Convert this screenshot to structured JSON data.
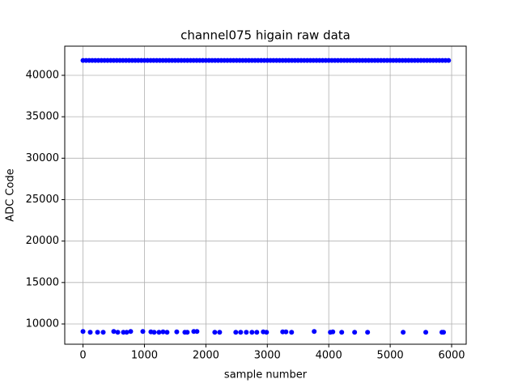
{
  "chart_data": {
    "type": "scatter",
    "title": "channel075 higain raw data",
    "x_label": "sample number",
    "y_label": "ADC Code",
    "xlim": [
      -297,
      6237
    ],
    "ylim": [
      7557,
      43517
    ],
    "xticks": [
      0,
      1000,
      2000,
      3000,
      4000,
      5000,
      6000
    ],
    "yticks": [
      10000,
      15000,
      20000,
      25000,
      30000,
      35000,
      40000
    ],
    "grid": true,
    "series": [
      {
        "color": "#0000ff",
        "x": [
          0,
          50,
          100,
          150,
          200,
          250,
          300,
          350,
          400,
          450,
          500,
          550,
          600,
          650,
          700,
          750,
          800,
          850,
          900,
          950,
          1000,
          1050,
          1100,
          1150,
          1200,
          1250,
          1300,
          1350,
          1400,
          1450,
          1500,
          1550,
          1600,
          1650,
          1700,
          1750,
          1800,
          1850,
          1900,
          1950,
          2000,
          2050,
          2100,
          2150,
          2200,
          2250,
          2300,
          2350,
          2400,
          2450,
          2500,
          2550,
          2600,
          2650,
          2700,
          2750,
          2800,
          2850,
          2900,
          2950,
          3000,
          3050,
          3100,
          3150,
          3200,
          3250,
          3300,
          3350,
          3400,
          3450,
          3500,
          3550,
          3600,
          3650,
          3700,
          3750,
          3800,
          3850,
          3900,
          3950,
          4000,
          4050,
          4100,
          4150,
          4200,
          4250,
          4300,
          4350,
          4400,
          4450,
          4500,
          4550,
          4600,
          4650,
          4700,
          4750,
          4800,
          4850,
          4900,
          4950,
          5000,
          5050,
          5100,
          5150,
          5200,
          5250,
          5300,
          5350,
          5400,
          5450,
          5500,
          5550,
          5600,
          5650,
          5700,
          5750,
          5800,
          5850,
          5900,
          5950
        ],
        "values": [
          41800,
          41800,
          41800,
          41800,
          41800,
          41800,
          41800,
          41800,
          41800,
          41800,
          41800,
          41800,
          41800,
          41800,
          41800,
          41800,
          41800,
          41800,
          41800,
          41800,
          41800,
          41800,
          41800,
          41800,
          41800,
          41800,
          41800,
          41800,
          41800,
          41800,
          41800,
          41800,
          41800,
          41800,
          41800,
          41800,
          41800,
          41800,
          41800,
          41800,
          41800,
          41800,
          41800,
          41800,
          41800,
          41800,
          41800,
          41800,
          41800,
          41800,
          41800,
          41800,
          41800,
          41800,
          41800,
          41800,
          41800,
          41800,
          41800,
          41800,
          41800,
          41800,
          41800,
          41800,
          41800,
          41800,
          41800,
          41800,
          41800,
          41800,
          41800,
          41800,
          41800,
          41800,
          41800,
          41800,
          41800,
          41800,
          41800,
          41800,
          41800,
          41800,
          41800,
          41800,
          41800,
          41800,
          41800,
          41800,
          41800,
          41800,
          41800,
          41800,
          41800,
          41800,
          41800,
          41800,
          41800,
          41800,
          41800,
          41800,
          41800,
          41800,
          41800,
          41800,
          41800,
          41800,
          41800,
          41800,
          41800,
          41800,
          41800,
          41800,
          41800,
          41800,
          41800,
          41800,
          41800,
          41800,
          41800,
          41800
        ]
      },
      {
        "color": "#0000ff",
        "x": [
          0,
          118,
          237,
          329,
          500,
          566,
          658,
          711,
          776,
          974,
          1105,
          1158,
          1237,
          1303,
          1368,
          1526,
          1658,
          1697,
          1803,
          1855,
          2145,
          2224,
          2487,
          2566,
          2658,
          2750,
          2829,
          2934,
          2987,
          3250,
          3303,
          3395,
          3763,
          4026,
          4066,
          4211,
          4421,
          4632,
          5211,
          5579,
          5842,
          5868
        ],
        "values": [
          9100,
          9000,
          9000,
          9000,
          9100,
          9000,
          9000,
          9000,
          9100,
          9100,
          9050,
          9000,
          9000,
          9050,
          9000,
          9050,
          9000,
          9000,
          9100,
          9100,
          9000,
          9000,
          9000,
          9000,
          9000,
          9000,
          9000,
          9050,
          9000,
          9050,
          9050,
          9000,
          9100,
          9000,
          9050,
          9000,
          9000,
          9000,
          9000,
          9000,
          9000,
          9000
        ]
      }
    ]
  }
}
